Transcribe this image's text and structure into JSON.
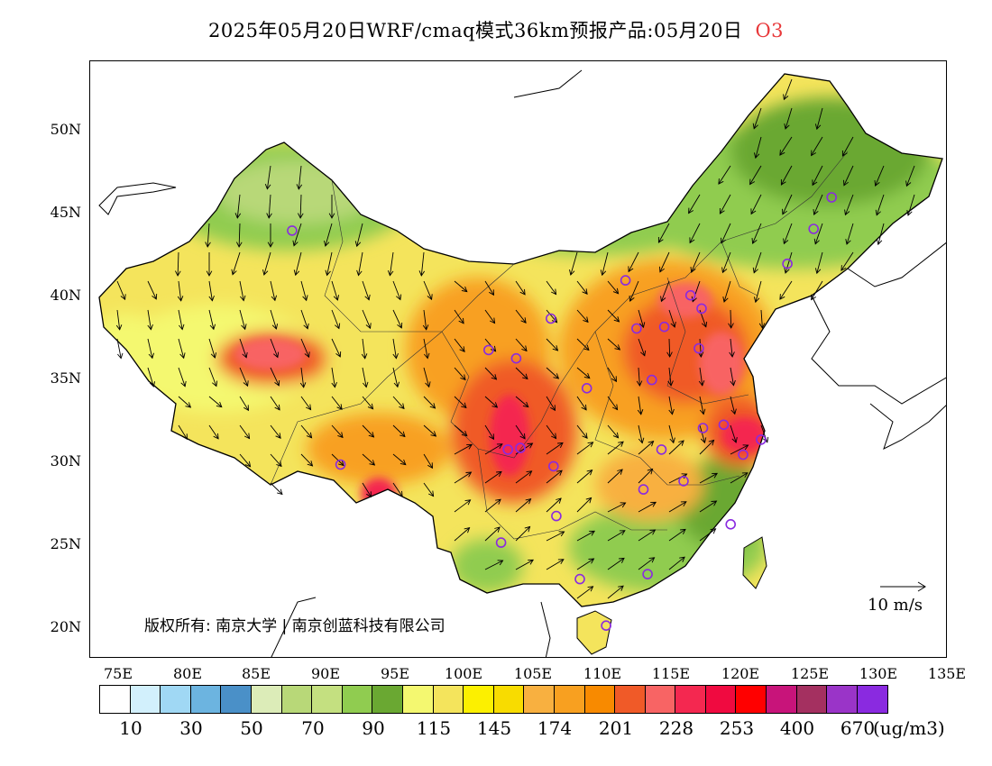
{
  "title": {
    "main": "2025年05月20日WRF/cmaq模式36km预报产品:05月20日",
    "pollutant": "O3"
  },
  "map": {
    "lon_range": [
      73,
      135
    ],
    "lat_range": [
      18,
      54
    ],
    "lat_labels": [
      "50N",
      "45N",
      "40N",
      "35N",
      "30N",
      "25N",
      "20N"
    ],
    "lat_values": [
      50,
      45,
      40,
      35,
      30,
      25,
      20
    ],
    "lon_labels": [
      "75E",
      "80E",
      "85E",
      "90E",
      "95E",
      "100E",
      "105E",
      "110E",
      "115E",
      "120E",
      "125E",
      "130E",
      "135E"
    ],
    "lon_values": [
      75,
      80,
      85,
      90,
      95,
      100,
      105,
      110,
      115,
      120,
      125,
      130,
      135
    ],
    "stations": [
      [
        87.6,
        43.8
      ],
      [
        91.1,
        29.7
      ],
      [
        101.8,
        36.6
      ],
      [
        103.8,
        36.1
      ],
      [
        106.3,
        38.5
      ],
      [
        111.7,
        40.8
      ],
      [
        112.5,
        37.9
      ],
      [
        114.5,
        38.0
      ],
      [
        116.4,
        39.9
      ],
      [
        117.2,
        39.1
      ],
      [
        117.0,
        36.7
      ],
      [
        113.6,
        34.8
      ],
      [
        108.9,
        34.3
      ],
      [
        104.1,
        30.7
      ],
      [
        106.5,
        29.6
      ],
      [
        103.2,
        30.6
      ],
      [
        114.3,
        30.6
      ],
      [
        113.0,
        28.2
      ],
      [
        115.9,
        28.7
      ],
      [
        117.3,
        31.9
      ],
      [
        118.8,
        32.1
      ],
      [
        120.2,
        30.3
      ],
      [
        121.5,
        31.2
      ],
      [
        119.3,
        26.1
      ],
      [
        113.3,
        23.1
      ],
      [
        108.4,
        22.8
      ],
      [
        110.3,
        20.0
      ],
      [
        106.7,
        26.6
      ],
      [
        102.7,
        25.0
      ],
      [
        123.4,
        41.8
      ],
      [
        125.3,
        43.9
      ],
      [
        126.6,
        45.8
      ]
    ]
  },
  "copyright": "版权所有: 南京大学 | 南京创蓝科技有限公司",
  "wind_reference": "10 m/s",
  "colorbar": {
    "colors": [
      "#ffffff",
      "#d2f0fc",
      "#a0d8f4",
      "#6cb4e0",
      "#4a90c8",
      "#dcecb8",
      "#b8d878",
      "#c4e080",
      "#90cc50",
      "#6aa832",
      "#f4f870",
      "#f4e45c",
      "#fcf000",
      "#f8dc00",
      "#f8b040",
      "#f8a020",
      "#f88a00",
      "#f05a28",
      "#f86464",
      "#f42850",
      "#f00a40",
      "#ff0000",
      "#c8147a",
      "#a43060",
      "#9a34c8",
      "#8a2ae0"
    ],
    "labels": [
      "10",
      "30",
      "50",
      "70",
      "90",
      "115",
      "145",
      "174",
      "201",
      "228",
      "253",
      "400",
      "670"
    ],
    "unit": "(ug/m3)"
  }
}
